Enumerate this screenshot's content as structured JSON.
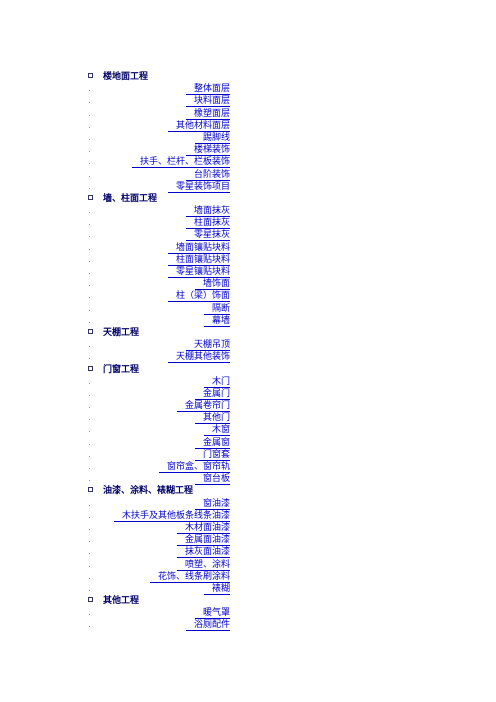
{
  "sections": [
    {
      "title": "楼地面工程",
      "items": [
        "整体面层",
        "块料面层",
        "橡塑面层",
        "其他材料面层",
        "踢脚线",
        "楼梯装饰",
        "扶手、栏杆、栏板装饰",
        "台阶装饰",
        "零星装饰项目"
      ]
    },
    {
      "title": "墙、柱面工程",
      "items": [
        "墙面抹灰",
        "柱面抹灰",
        "零星抹灰",
        "墙面镶贴块料",
        "柱面镶贴块料",
        "零星镶贴块料",
        "墙饰面",
        "柱（梁）饰面",
        "隔断",
        "幕墙"
      ]
    },
    {
      "title": "天棚工程",
      "items": [
        "天棚吊顶",
        "天棚其他装饰"
      ]
    },
    {
      "title": "门窗工程",
      "items": [
        "木门",
        "金属门",
        "金属卷帘门",
        "其他门",
        "木窗",
        "金属窗",
        "门窗套",
        "窗帘盒、窗帘轨",
        "窗台板"
      ]
    },
    {
      "title": "油漆、涂料、裱糊工程",
      "items": [
        "窗油漆",
        "木扶手及其他板条线条油漆",
        "木材面油漆",
        "金属面油漆",
        "抹灰面油漆",
        "喷塑、涂料",
        "花饰、线条刷涂料",
        "裱糊"
      ]
    },
    {
      "title": "其他工程",
      "items": [
        "暖气罩",
        "浴厕配件"
      ]
    }
  ]
}
